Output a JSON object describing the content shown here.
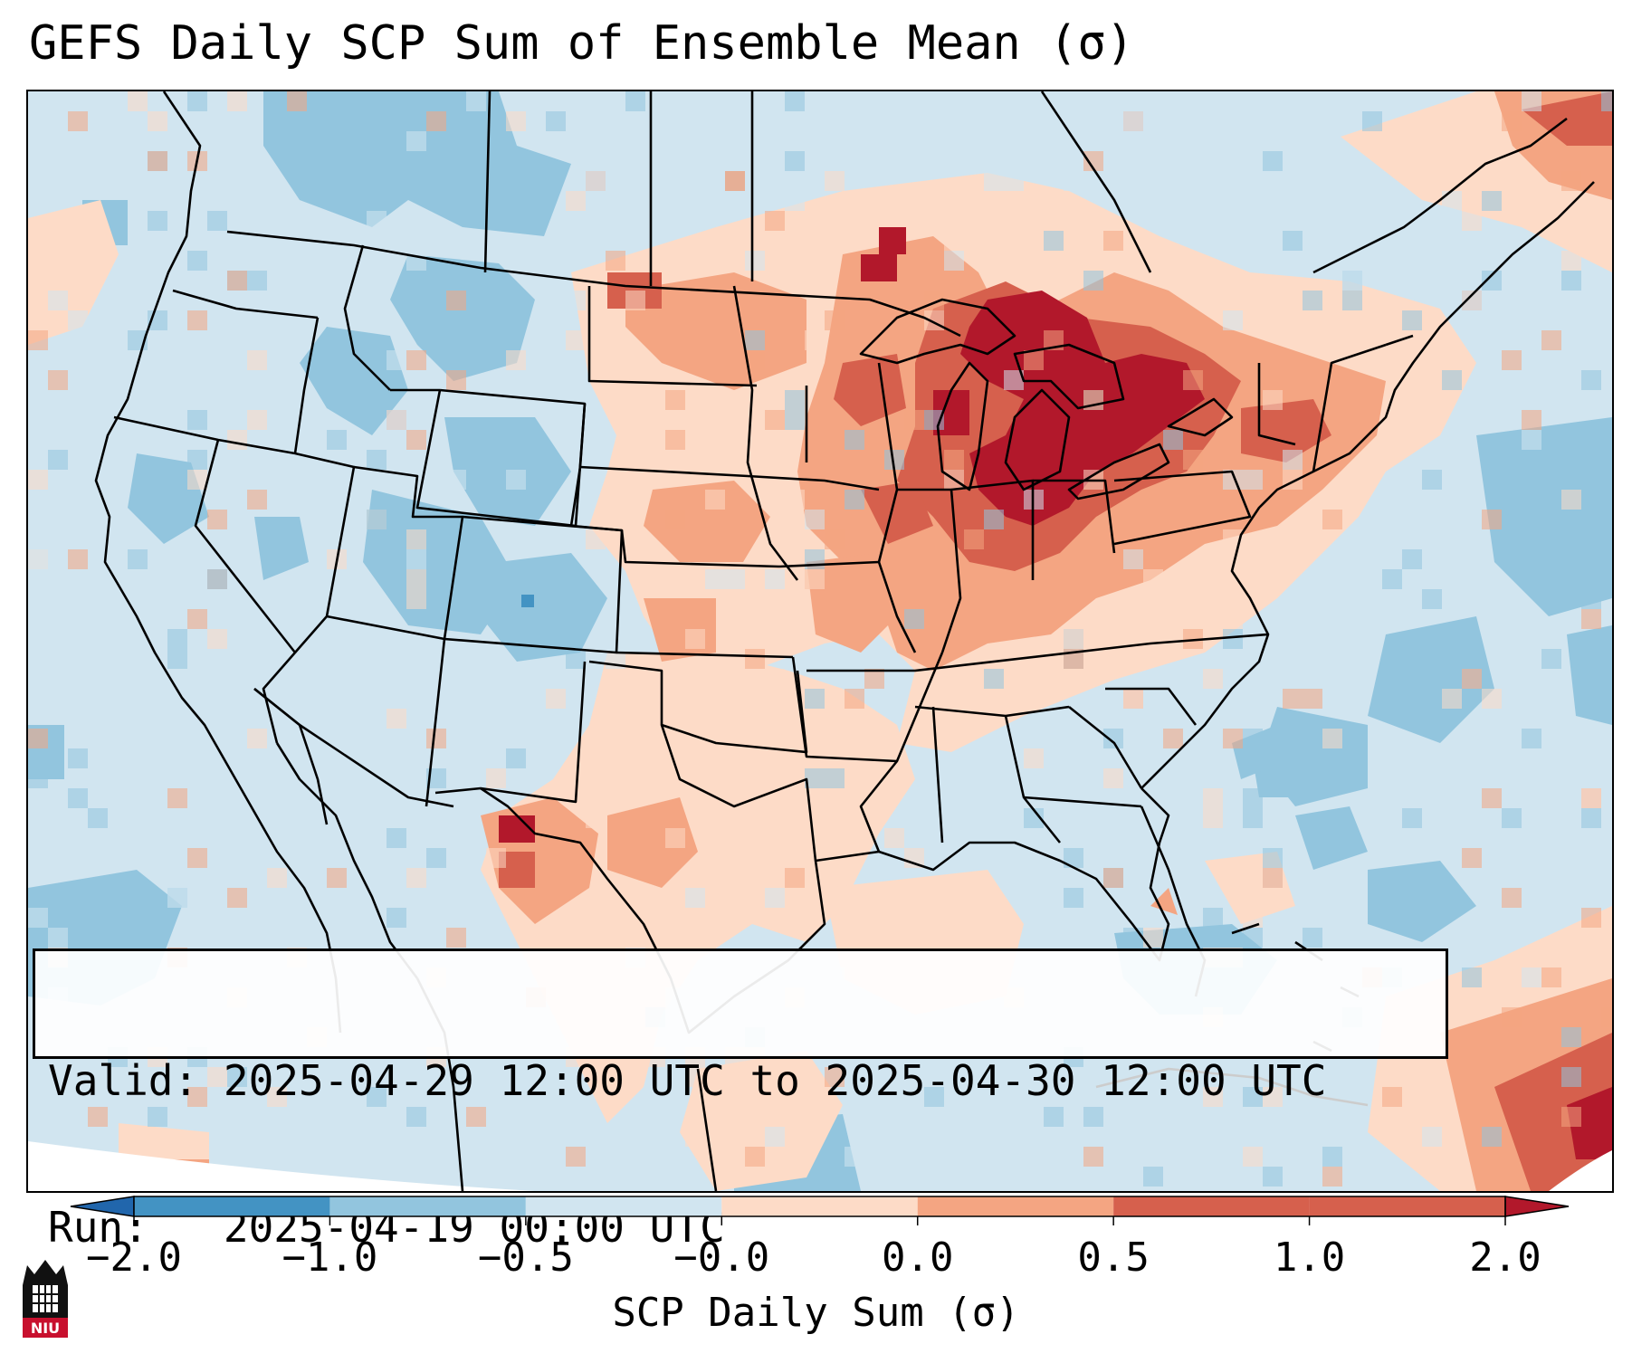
{
  "title": "GEFS Daily SCP Sum of Ensemble Mean (σ)",
  "info": {
    "valid_label": "Valid:",
    "valid_value": "2025-04-29 12:00 UTC to 2025-04-30 12:00 UTC",
    "run_label": "Run:",
    "run_value": "2025-04-19 00:00 UTC"
  },
  "colorbar": {
    "label": "SCP Daily Sum (σ)",
    "ticks": [
      "−2.0",
      "−1.0",
      "−0.5",
      "−0.0",
      "0.0",
      "0.5",
      "1.0",
      "2.0"
    ],
    "colors": [
      "#2166ac",
      "#4393c3",
      "#92c5de",
      "#d1e5f0",
      "#fddbc7",
      "#f4a582",
      "#d6604d",
      "#b2182b"
    ],
    "extend": "both"
  },
  "logo_text": "NIU",
  "map": {
    "projection": "Lambert conformal, CONUS",
    "background_color": "#d1e5f0",
    "border_color": "#000000"
  }
}
